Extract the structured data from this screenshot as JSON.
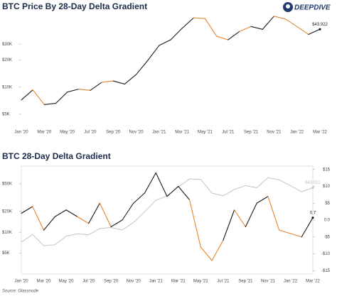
{
  "logo": "DEEPDIVE",
  "source": "Source: Glassnode",
  "chart_data": [
    {
      "type": "line",
      "title": "BTC Price By 28-Day Delta Gradient",
      "log": true,
      "categories": [
        "Jan '20",
        null,
        "Mar '20",
        null,
        "May '20",
        null,
        "Jul '20",
        null,
        "Sep '20",
        null,
        "Nov '20",
        null,
        "Jan '21",
        null,
        "Mar '21",
        null,
        "May '21",
        null,
        "Jul '21",
        null,
        "Sep '21",
        null,
        "Nov '21",
        null,
        "Jan '22",
        null,
        "Mar '22"
      ],
      "ylim": [
        3800,
        60000
      ],
      "yticks": [
        {
          "value": 5000,
          "label": "$5K"
        },
        {
          "value": 10000,
          "label": "$10K"
        },
        {
          "value": 20000,
          "label": "$20K"
        },
        {
          "value": 30000,
          "label": "$30K"
        }
      ],
      "series": [
        {
          "values": [
            7200,
            9300,
            6400,
            6600,
            8800,
            9500,
            9200,
            11300,
            11700,
            10800,
            13800,
            19700,
            29000,
            33500,
            45000,
            58800,
            57800,
            36700,
            33500,
            41500,
            47100,
            43800,
            61300,
            57000,
            47000,
            38500,
            43922
          ],
          "colors": [
            "#1a1a1a",
            "#1a1a1a",
            "#e8842c",
            "#1a1a1a",
            "#1a1a1a",
            "#1a1a1a",
            "#e8842c",
            "#1a1a1a",
            "#e8842c",
            "#1a1a1a",
            "#1a1a1a",
            "#1a1a1a",
            "#1a1a1a",
            "#1a1a1a",
            "#1a1a1a",
            "#1a1a1a",
            "#e8842c",
            "#e8842c",
            "#e8842c",
            "#1a1a1a",
            "#e8842c",
            "#1a1a1a",
            "#1a1a1a",
            "#e8842c",
            "#e8842c",
            "#e8842c",
            "#1a1a1a"
          ],
          "value_labels": [
            null,
            null,
            null,
            null,
            null,
            null,
            null,
            null,
            null,
            null,
            null,
            null,
            null,
            null,
            null,
            null,
            null,
            null,
            null,
            null,
            null,
            null,
            null,
            null,
            null,
            null,
            "$43,922"
          ]
        }
      ]
    },
    {
      "type": "line",
      "title": "BTC 28-Day Delta Gradient",
      "log": true,
      "box": true,
      "categories": [
        "Jan '20",
        null,
        "Mar '20",
        null,
        "May '20",
        null,
        "Jul '20",
        null,
        "Sep '20",
        null,
        "Nov '20",
        null,
        "Jan '21",
        null,
        "Mar '21",
        null,
        "May '21",
        null,
        "Jul '21",
        null,
        "Sep '21",
        null,
        "Nov '21",
        null,
        "Jan '22",
        null,
        "Mar '22"
      ],
      "ylim": [
        2500,
        90000
      ],
      "yticks": [
        {
          "value": 5000,
          "label": "$5K"
        },
        {
          "value": 10000,
          "label": "$10K"
        },
        {
          "value": 20000,
          "label": "$20K"
        },
        {
          "value": 50000,
          "label": "$50K"
        }
      ],
      "y2lim": [
        -16,
        16
      ],
      "y2ticks": [
        {
          "value": 15,
          "label": "$15"
        },
        {
          "value": 10,
          "label": "$10"
        },
        {
          "value": 5,
          "label": "$5"
        },
        {
          "value": 0,
          "label": "0.0"
        },
        {
          "value": -5,
          "label": "-$5"
        },
        {
          "value": -10,
          "label": "-$10"
        },
        {
          "value": -15,
          "label": "-$15"
        }
      ],
      "series": [
        {
          "values": [
            7200,
            9300,
            6400,
            6600,
            8800,
            9500,
            9200,
            11300,
            11700,
            10800,
            13800,
            19700,
            29000,
            33500,
            45000,
            58800,
            57800,
            36700,
            33500,
            41500,
            47100,
            43800,
            61300,
            57000,
            47000,
            38500,
            43922
          ],
          "color": "#c4c4c4",
          "value_labels": [
            null,
            null,
            null,
            null,
            null,
            null,
            null,
            null,
            null,
            null,
            null,
            null,
            null,
            null,
            null,
            null,
            null,
            null,
            null,
            null,
            null,
            null,
            null,
            null,
            null,
            null,
            "$43,922"
          ]
        },
        {
          "axis": "y2",
          "values": [
            2,
            4,
            -3,
            1,
            3,
            1,
            -1,
            5,
            -2,
            0,
            5,
            8,
            14,
            7,
            10,
            6,
            -8,
            -12,
            -6,
            3,
            -2,
            5,
            7,
            -3,
            -4,
            -5,
            0.7
          ],
          "colors": [
            "#1a1a1a",
            "#1a1a1a",
            "#e8842c",
            "#1a1a1a",
            "#1a1a1a",
            "#1a1a1a",
            "#e8842c",
            "#1a1a1a",
            "#e8842c",
            "#1a1a1a",
            "#1a1a1a",
            "#1a1a1a",
            "#1a1a1a",
            "#1a1a1a",
            "#1a1a1a",
            "#1a1a1a",
            "#e8842c",
            "#e8842c",
            "#e8842c",
            "#1a1a1a",
            "#e8842c",
            "#1a1a1a",
            "#1a1a1a",
            "#e8842c",
            "#e8842c",
            "#e8842c",
            "#1a1a1a"
          ],
          "value_labels": [
            null,
            null,
            null,
            null,
            null,
            null,
            null,
            null,
            null,
            null,
            null,
            null,
            null,
            null,
            null,
            null,
            null,
            null,
            null,
            null,
            null,
            null,
            null,
            null,
            null,
            null,
            "0.7"
          ]
        }
      ]
    }
  ]
}
